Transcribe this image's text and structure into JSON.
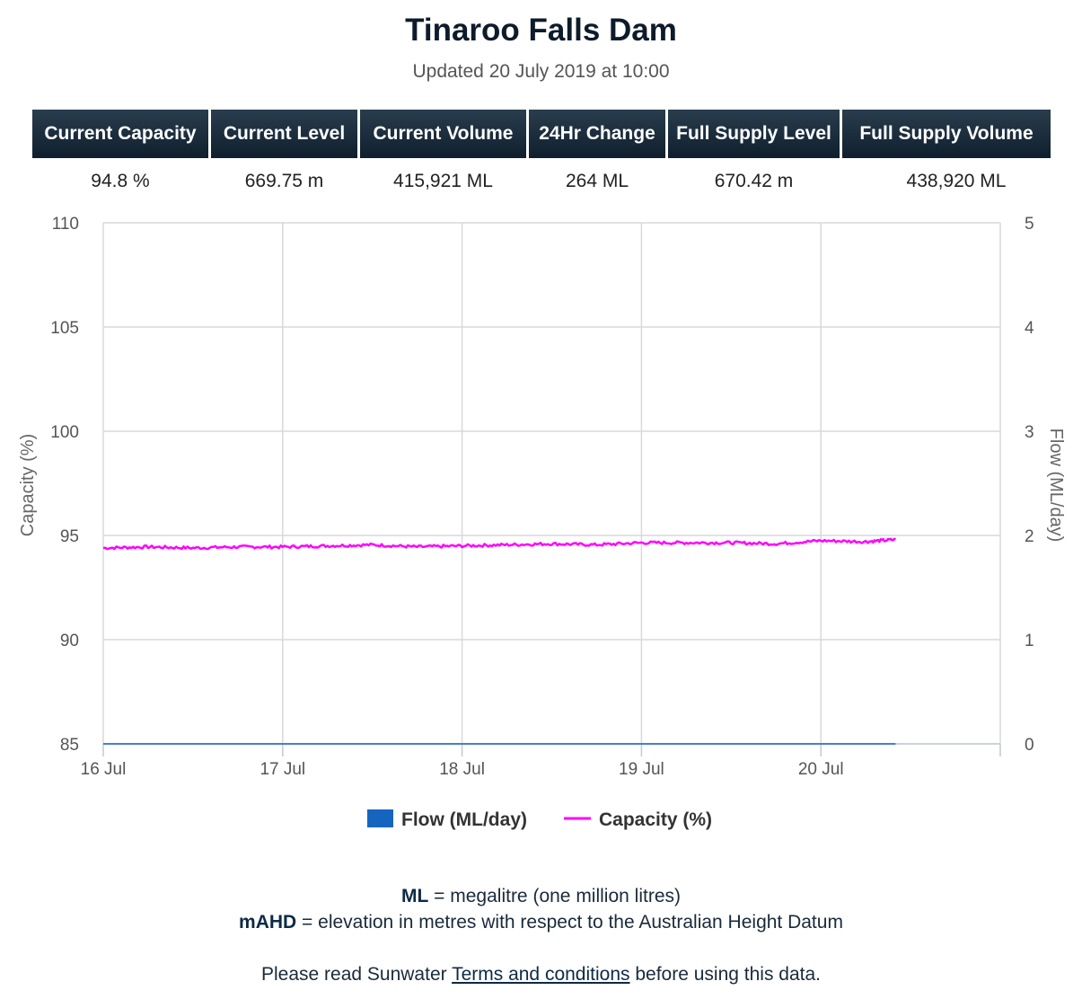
{
  "page": {
    "title": "Tinaroo Falls Dam",
    "subtitle": "Updated 20 July 2019 at 10:00"
  },
  "stats": {
    "headers": [
      "Current Capacity",
      "Current Level",
      "Current Volume",
      "24Hr Change",
      "Full Supply Level",
      "Full Supply Volume"
    ],
    "values": [
      "94.8 %",
      "669.75 m",
      "415,921 ML",
      "264 ML",
      "670.42 m",
      "438,920 ML"
    ]
  },
  "colors": {
    "flow": "#1565c0",
    "capacity": "#ff00ff",
    "header_bg": "#13222f"
  },
  "chart_data": {
    "type": "line",
    "x_categories": [
      "16 Jul",
      "17 Jul",
      "18 Jul",
      "19 Jul",
      "20 Jul"
    ],
    "x_range": [
      "16 Jul 00:00",
      "21 Jul 00:00"
    ],
    "y_left": {
      "label": "Capacity (%)",
      "ticks": [
        "85",
        "90",
        "95",
        "100",
        "105",
        "110"
      ],
      "lim": [
        85,
        110
      ]
    },
    "y_right": {
      "label": "Flow (ML/day)",
      "ticks": [
        "0",
        "1",
        "2",
        "3",
        "4",
        "5"
      ],
      "lim": [
        0,
        5
      ]
    },
    "grid": true,
    "legend_position": "bottom-center",
    "series": [
      {
        "name": "Flow (ML/day)",
        "axis": "right",
        "x": [
          "16 Jul 00:00",
          "17 Jul 00:00",
          "18 Jul 00:00",
          "19 Jul 00:00",
          "20 Jul 00:00",
          "20 Jul 10:00"
        ],
        "values": [
          0,
          0,
          0,
          0,
          0,
          0
        ]
      },
      {
        "name": "Capacity (%)",
        "axis": "left",
        "x": [
          "16 Jul 00:00",
          "16 Jul 06:00",
          "16 Jul 12:00",
          "16 Jul 18:00",
          "17 Jul 00:00",
          "17 Jul 06:00",
          "17 Jul 12:00",
          "17 Jul 18:00",
          "18 Jul 00:00",
          "18 Jul 06:00",
          "18 Jul 12:00",
          "18 Jul 18:00",
          "19 Jul 00:00",
          "19 Jul 06:00",
          "19 Jul 12:00",
          "19 Jul 18:00",
          "20 Jul 00:00",
          "20 Jul 06:00",
          "20 Jul 10:00"
        ],
        "values": [
          94.4,
          94.45,
          94.4,
          94.45,
          94.45,
          94.5,
          94.55,
          94.45,
          94.5,
          94.55,
          94.6,
          94.55,
          94.65,
          94.65,
          94.65,
          94.6,
          94.75,
          94.7,
          94.8
        ]
      }
    ]
  },
  "notes": {
    "ml_abbr": "ML",
    "ml_text": " = megalitre (one million litres)",
    "mahd_abbr": "mAHD",
    "mahd_text": " = elevation in metres with respect to the Australian Height Datum",
    "terms_prefix": "Please read Sunwater ",
    "terms_link": "Terms and conditions",
    "terms_suffix": " before using this data."
  }
}
